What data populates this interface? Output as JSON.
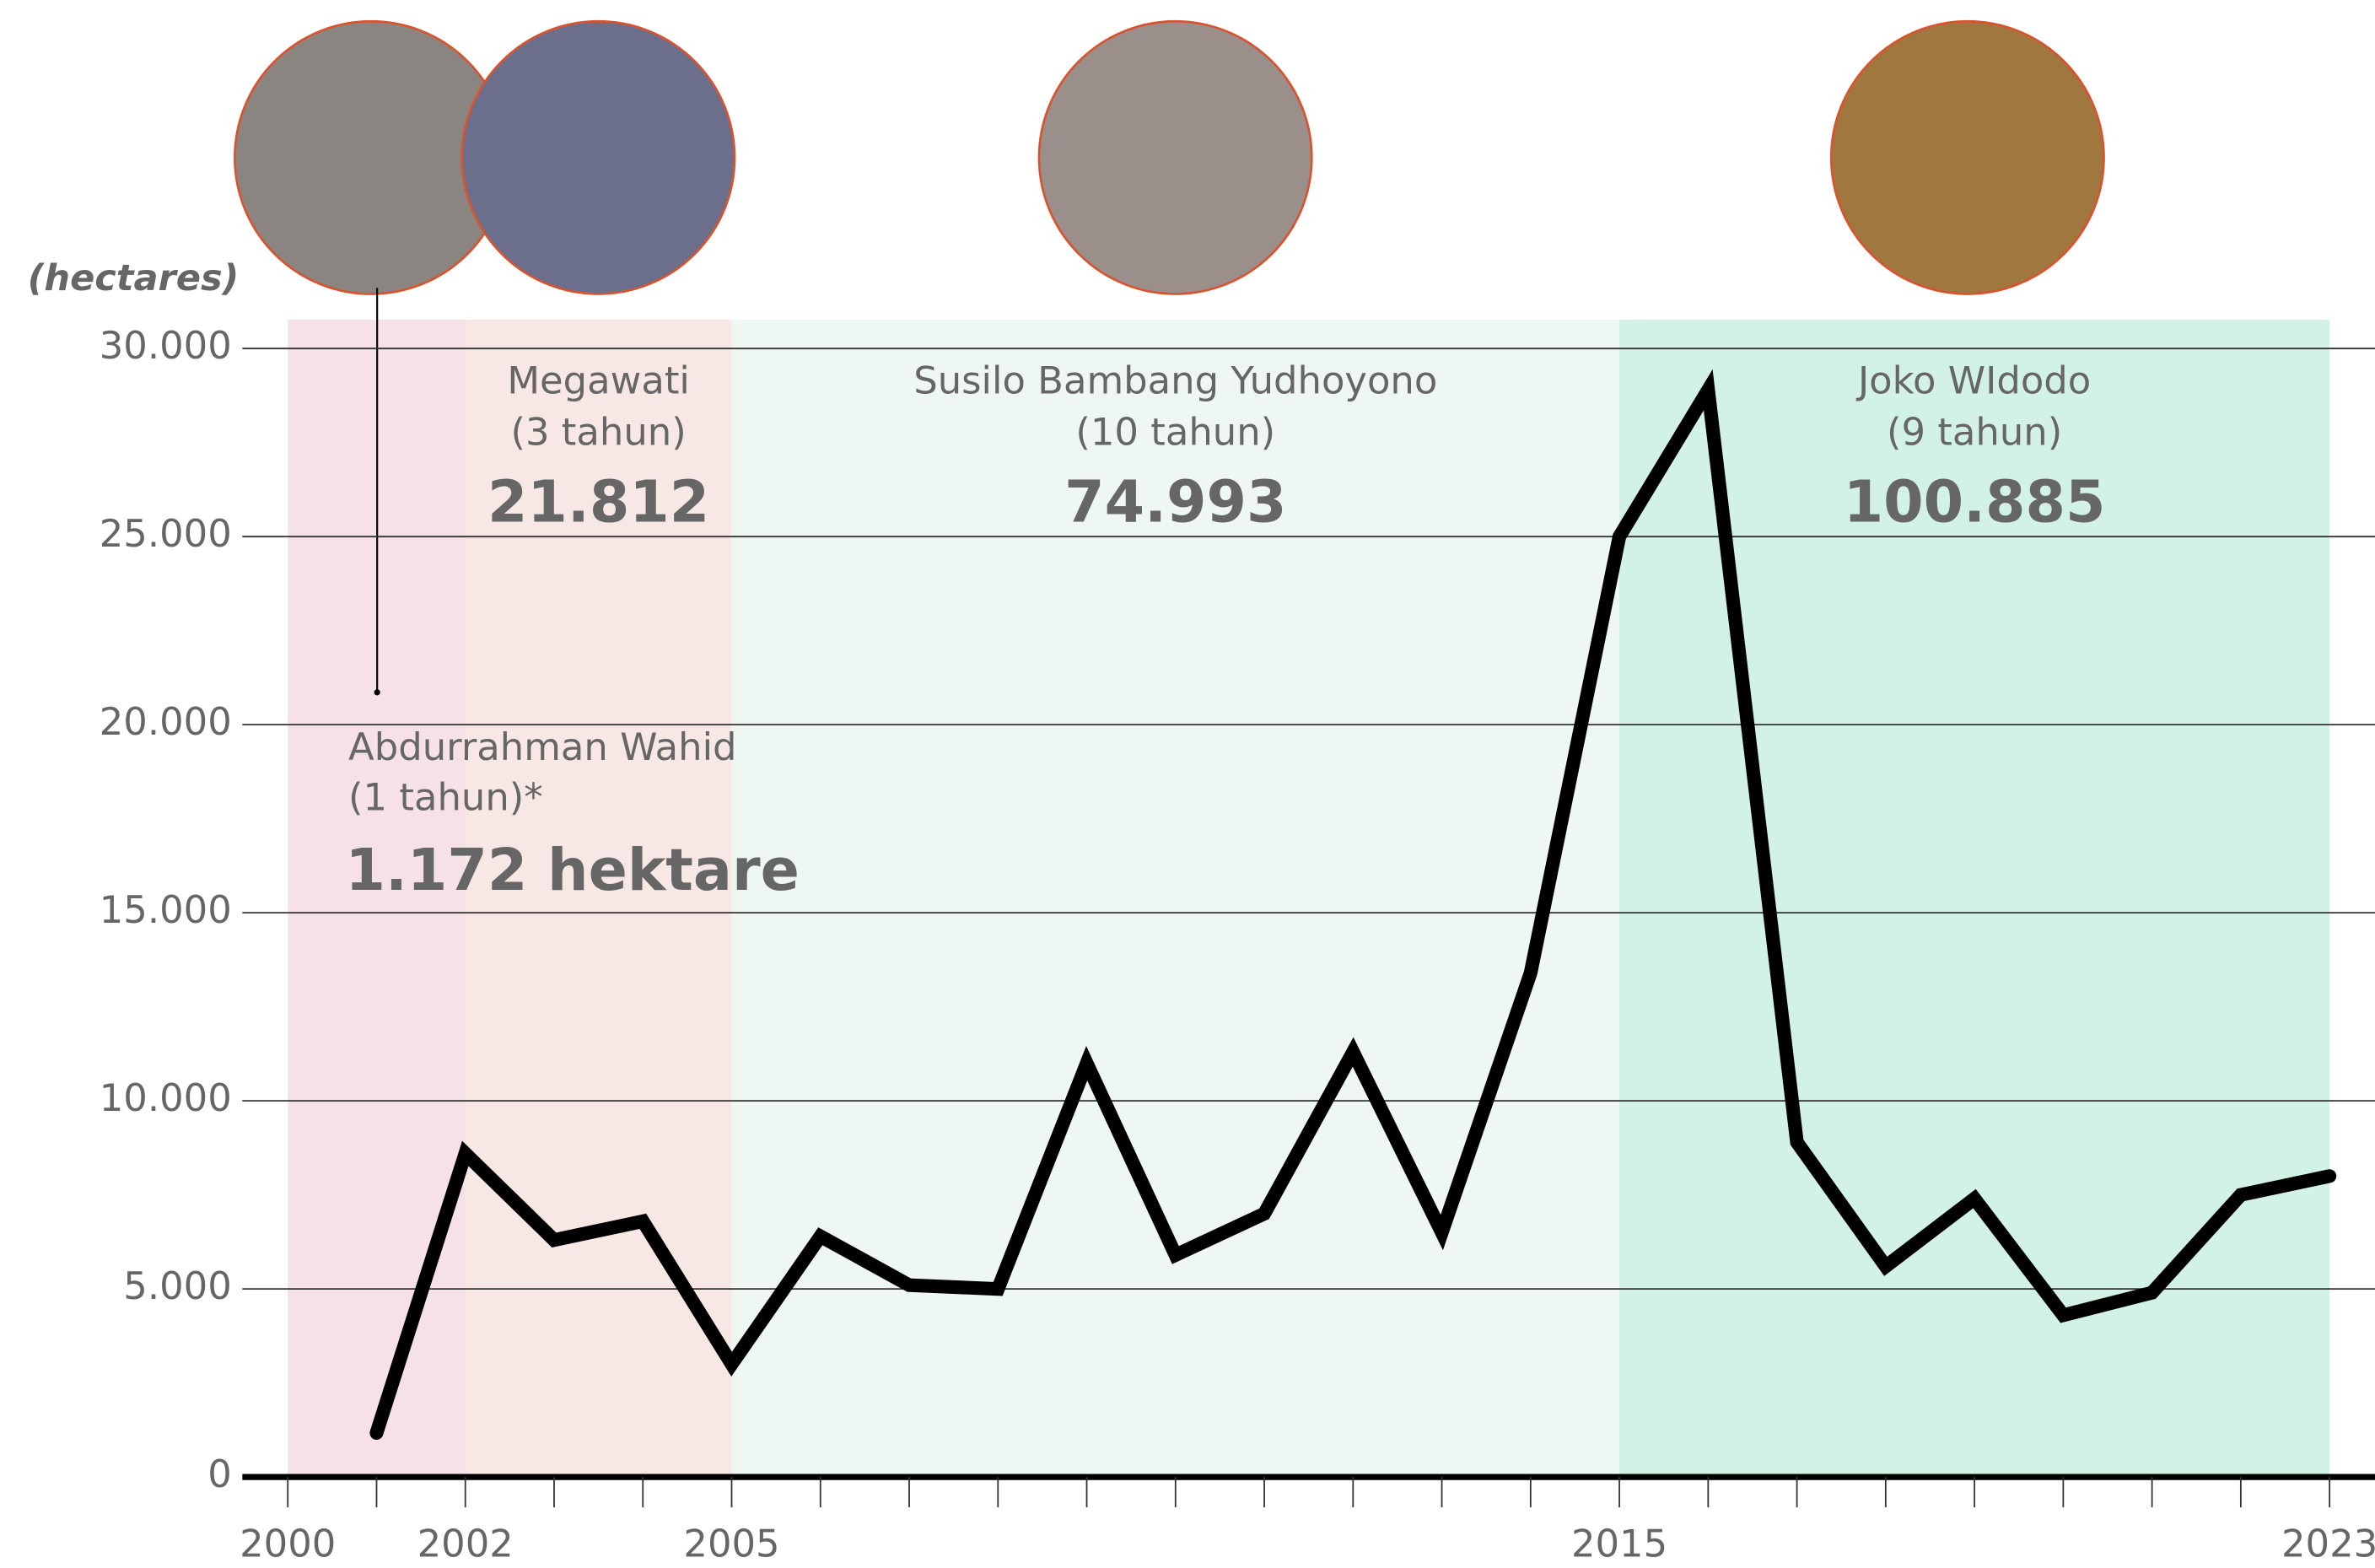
{
  "chart_data": {
    "type": "line",
    "y_label": "(hectares)",
    "x": [
      2001,
      2002,
      2003,
      2004,
      2005,
      2006,
      2007,
      2008,
      2009,
      2010,
      2011,
      2012,
      2013,
      2014,
      2015,
      2016,
      2017,
      2018,
      2019,
      2020,
      2021,
      2022,
      2023
    ],
    "series": [
      {
        "color": "#000000",
        "values": [
          1172,
          8600,
          6300,
          6800,
          3000,
          6400,
          5100,
          5000,
          11000,
          5900,
          7000,
          11300,
          6500,
          13400,
          25000,
          28900,
          8900,
          5600,
          7400,
          4300,
          4900,
          7500,
          8000
        ]
      }
    ],
    "xlim": [
      2000,
      2023.5
    ],
    "xticks": [
      2000,
      2002,
      2005,
      2015,
      2023
    ],
    "ylim": [
      0,
      30000
    ],
    "yticks": [
      0,
      {
        "value": 5000,
        "label": "5.000"
      },
      {
        "value": 10000,
        "label": "10.000"
      },
      {
        "value": 15000,
        "label": "15.000"
      },
      {
        "value": 20000,
        "label": "20.000"
      },
      {
        "value": 25000,
        "label": "25.000"
      },
      {
        "value": 30000,
        "label": "30.000"
      }
    ],
    "grid": true,
    "eras": [
      {
        "name": "Abdurrahman Wahid",
        "term": "(1 tahun)*",
        "total": 1172,
        "total_label": "1.172 hektare",
        "start": 2000,
        "end": 2002,
        "color": "#f5e1e6"
      },
      {
        "name": "Megawati",
        "term": "(3 tahun)",
        "total": 21812,
        "total_label": "21.812",
        "start": 2002,
        "end": 2005,
        "color": "#f8e8e5"
      },
      {
        "name": "Susilo Bambang Yudhoyono",
        "term": "(10 tahun)",
        "total": 74993,
        "total_label": "74.993",
        "start": 2005,
        "end": 2015,
        "color": "#eff7f2"
      },
      {
        "name": "Joko WIdodo",
        "term": "(9 tahun)",
        "total": 100885,
        "total_label": "100.885",
        "start": 2015,
        "end": 2023,
        "color": "#d3f2e6"
      }
    ]
  }
}
